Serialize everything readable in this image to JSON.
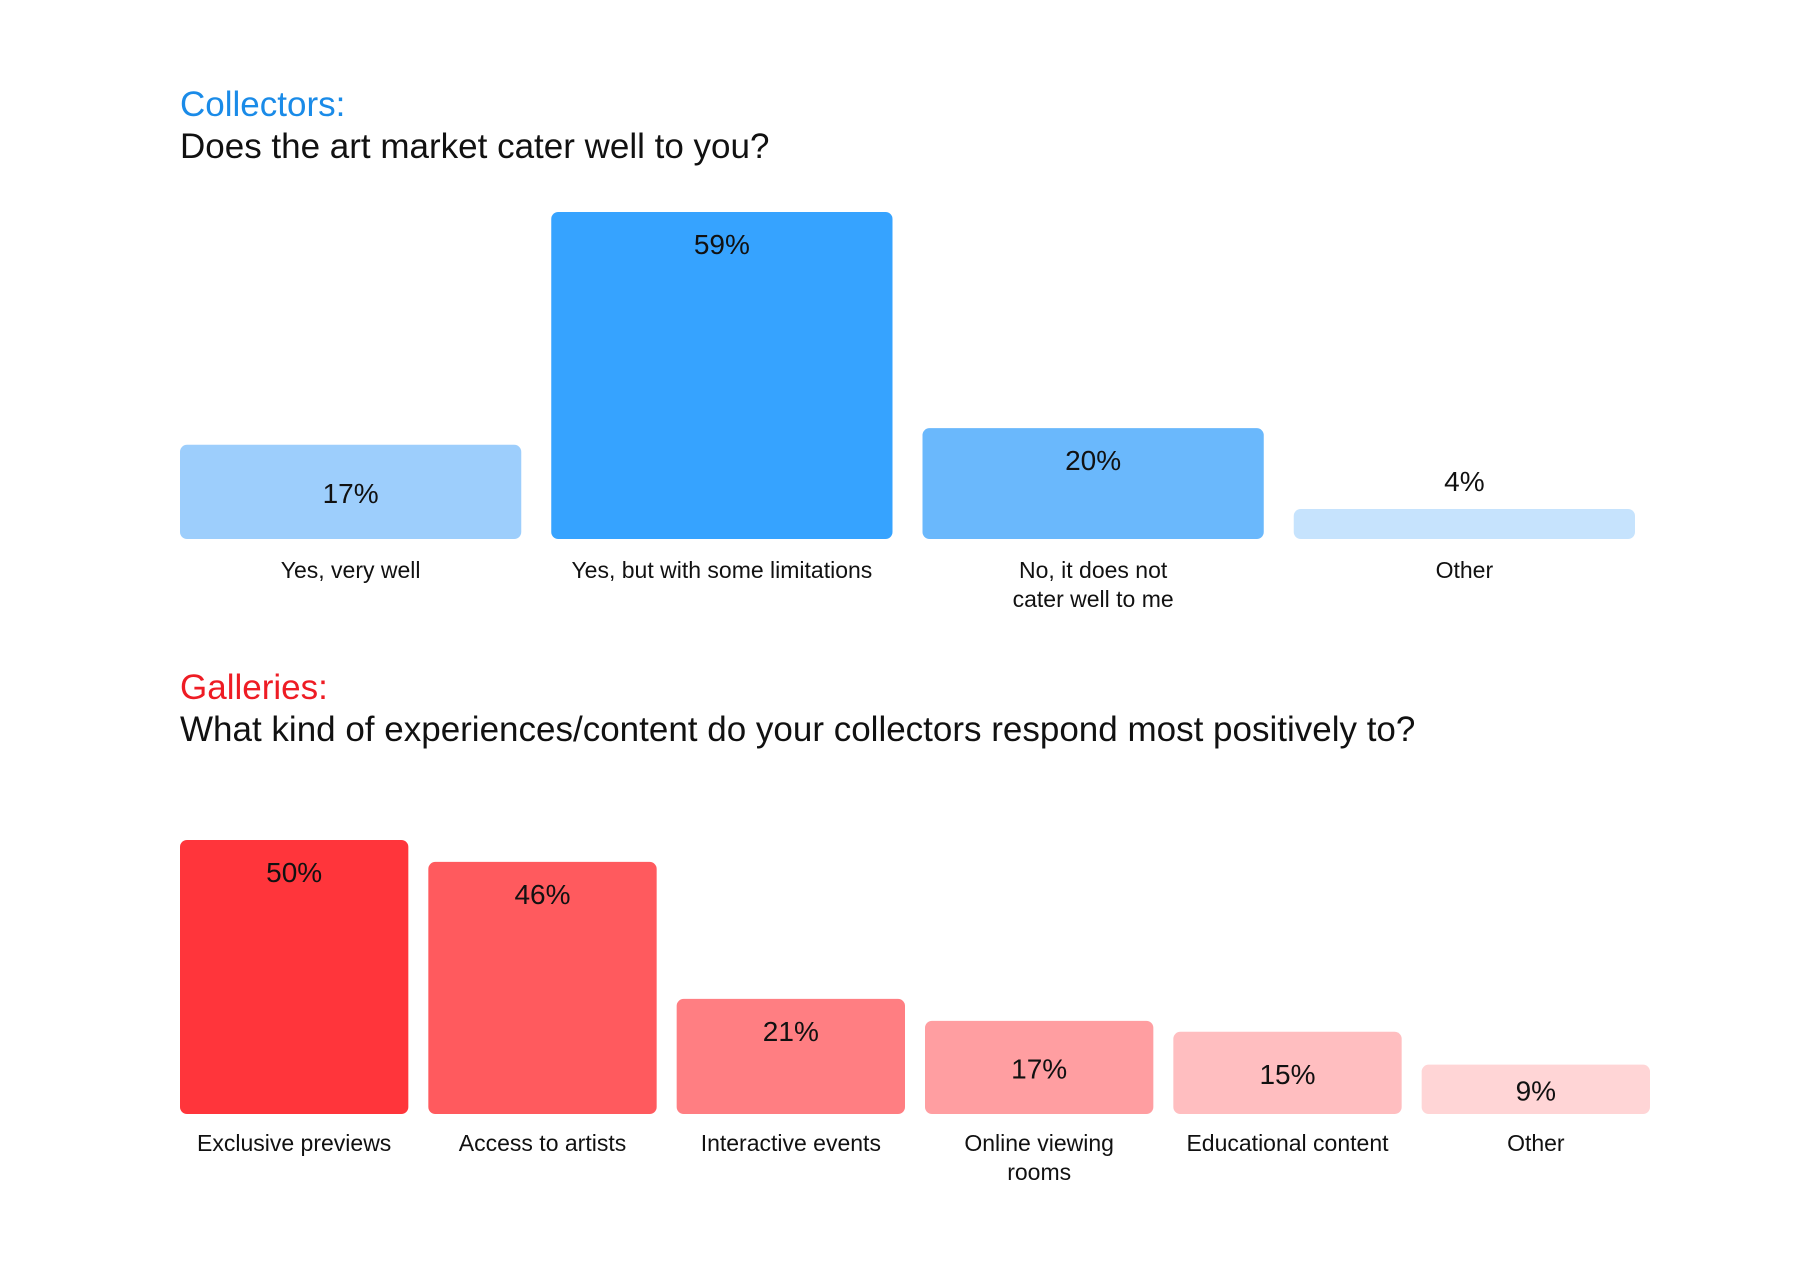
{
  "charts": {
    "collectors": {
      "heading": "Collectors:",
      "question": "Does the art market cater well to you?",
      "accent": "#1a8be8"
    },
    "galleries": {
      "heading": "Galleries:",
      "question": "What kind of experiences/content do your collectors respond most positively to?",
      "accent": "#ee1c24"
    }
  },
  "chart_data": [
    {
      "type": "bar",
      "title": "Does the art market cater well to you?",
      "subtitle": "Collectors:",
      "categories": [
        "Yes, very well",
        "Yes, but with some limitations",
        "No, it does not cater well to me",
        "Other"
      ],
      "category_lines": [
        [
          "Yes, very well"
        ],
        [
          "Yes, but with some limitations"
        ],
        [
          "No, it does not",
          "cater well to me"
        ],
        [
          "Other"
        ]
      ],
      "values": [
        17,
        59,
        20,
        4
      ],
      "value_labels": [
        "17%",
        "59%",
        "20%",
        "4%"
      ],
      "colors": [
        "#9dcefc",
        "#36a3ff",
        "#6ab8fc",
        "#c6e3fd"
      ],
      "unit": "%",
      "ylim": [
        0,
        59
      ],
      "grid": false,
      "legend": "none"
    },
    {
      "type": "bar",
      "title": "What kind of experiences/content do your collectors respond most positively to?",
      "subtitle": "Galleries:",
      "categories": [
        "Exclusive previews",
        "Access to artists",
        "Interactive events",
        "Online viewing rooms",
        "Educational content",
        "Other"
      ],
      "category_lines": [
        [
          "Exclusive previews"
        ],
        [
          "Access to artists"
        ],
        [
          "Interactive events"
        ],
        [
          "Online viewing",
          "rooms"
        ],
        [
          "Educational content"
        ],
        [
          "Other"
        ]
      ],
      "values": [
        50,
        46,
        21,
        17,
        15,
        9
      ],
      "value_labels": [
        "50%",
        "46%",
        "21%",
        "17%",
        "15%",
        "9%"
      ],
      "colors": [
        "#ff353b",
        "#ff5a5e",
        "#ff7e82",
        "#ff9ea1",
        "#ffbec0",
        "#ffd5d6"
      ],
      "unit": "%",
      "ylim": [
        0,
        50
      ],
      "grid": false,
      "legend": "none"
    }
  ]
}
